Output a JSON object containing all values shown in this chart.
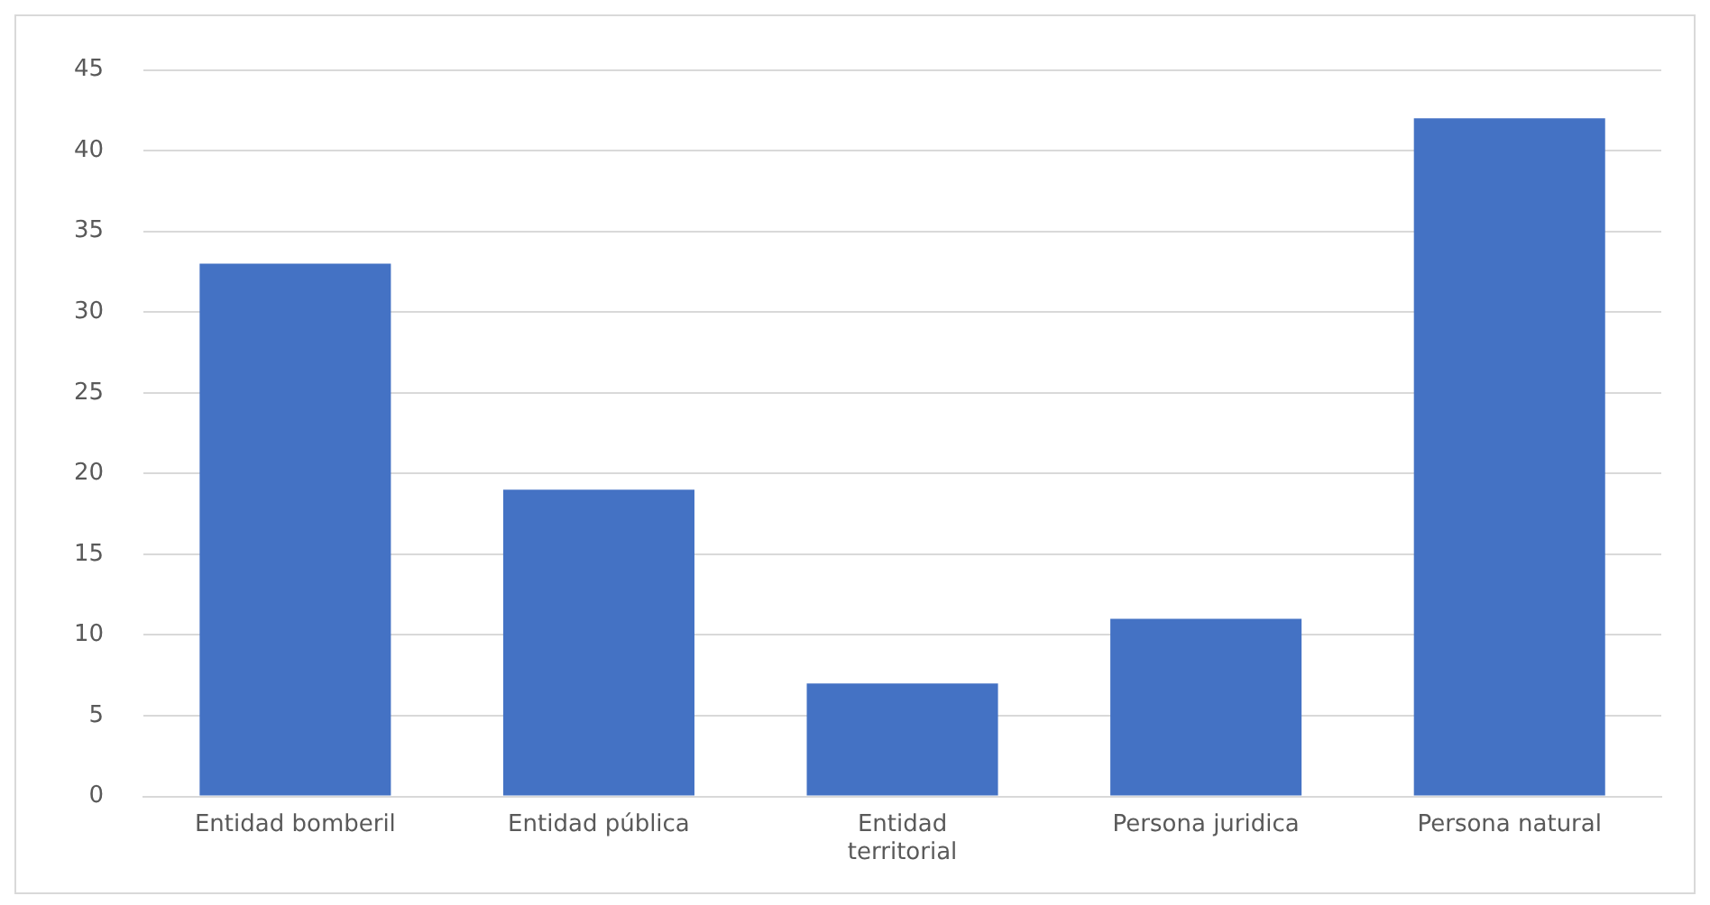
{
  "chart_data": {
    "type": "bar",
    "categories": [
      "Entidad bomberil",
      "Entidad pública",
      "Entidad territorial",
      "Persona juridica",
      "Persona natural"
    ],
    "values": [
      33,
      19,
      7,
      11,
      42
    ],
    "color": "#4472c4",
    "ylim": [
      0,
      45
    ],
    "yticks": [
      0,
      5,
      10,
      15,
      20,
      25,
      30,
      35,
      40,
      45
    ],
    "grid": "y",
    "legend": false
  }
}
